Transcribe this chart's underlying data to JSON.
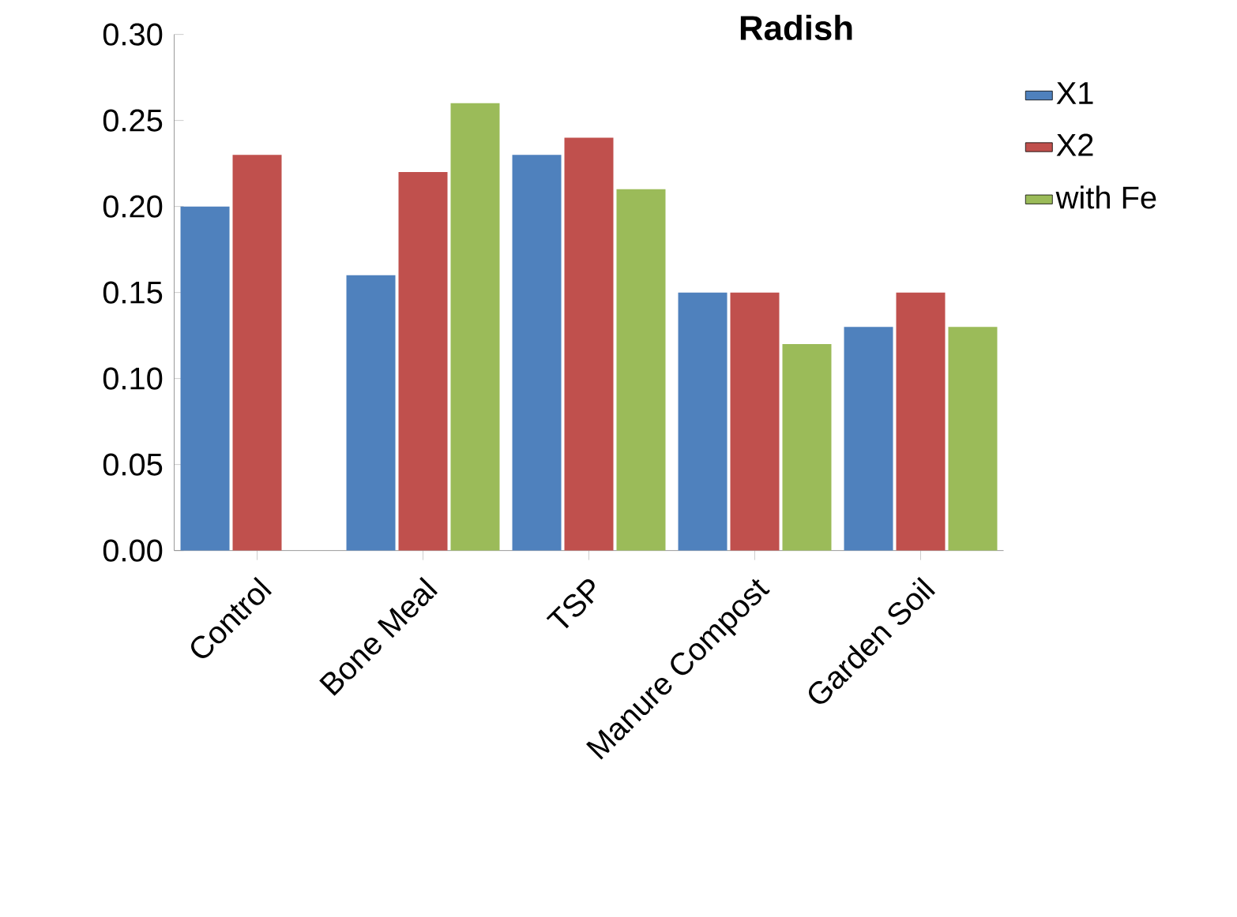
{
  "chart_data": {
    "type": "bar",
    "title": "Radish",
    "categories": [
      "Control",
      "Bone Meal",
      "TSP",
      "Manure Compost",
      "Garden Soil"
    ],
    "series": [
      {
        "name": "X1",
        "color": "#4f81bd",
        "values": [
          0.2,
          0.16,
          0.23,
          0.15,
          0.13
        ]
      },
      {
        "name": "X2",
        "color": "#c0504d",
        "values": [
          0.23,
          0.22,
          0.24,
          0.15,
          0.15
        ]
      },
      {
        "name": "with Fe",
        "color": "#9bbb59",
        "values": [
          null,
          0.26,
          0.21,
          0.12,
          0.13
        ]
      }
    ],
    "ylim": [
      0,
      0.3
    ],
    "yticks": [
      {
        "value": 0,
        "label": "0.00"
      },
      {
        "value": 0.05,
        "label": "0.05"
      },
      {
        "value": 0.1,
        "label": "0.10"
      },
      {
        "value": 0.15,
        "label": "0.15"
      },
      {
        "value": 0.2,
        "label": "0.20"
      },
      {
        "value": 0.25,
        "label": "0.25"
      },
      {
        "value": 0.3,
        "label": "0.30"
      }
    ],
    "grid": false,
    "legend": "right"
  }
}
